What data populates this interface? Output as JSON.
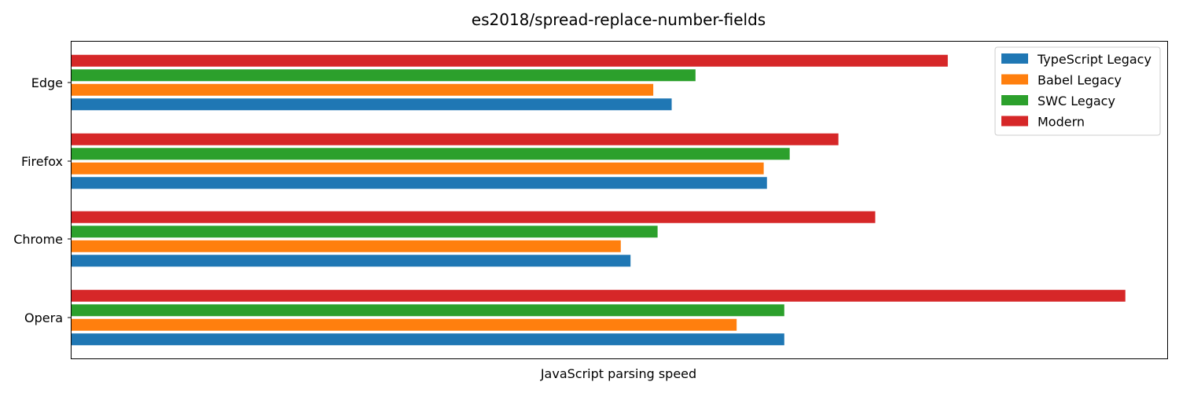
{
  "chart_data": {
    "type": "bar",
    "orientation": "horizontal",
    "title": "es2018/spread-replace-number-fields",
    "xlabel": "JavaScript parsing speed",
    "ylabel": "",
    "categories": [
      "Edge",
      "Firefox",
      "Chrome",
      "Opera"
    ],
    "xlim": [
      0,
      100
    ],
    "grid": false,
    "legend_position": "top-right",
    "series": [
      {
        "name": "TypeScript Legacy",
        "color": "#1f77b4",
        "values": [
          55.5,
          64.3,
          51.7,
          65.9
        ]
      },
      {
        "name": "Babel Legacy",
        "color": "#ff7f0e",
        "values": [
          53.8,
          64.0,
          50.8,
          61.5
        ]
      },
      {
        "name": "SWC Legacy",
        "color": "#2ca02c",
        "values": [
          57.7,
          66.4,
          54.2,
          65.9
        ]
      },
      {
        "name": "Modern",
        "color": "#d62728",
        "values": [
          81.0,
          70.9,
          74.3,
          97.4
        ]
      }
    ]
  }
}
